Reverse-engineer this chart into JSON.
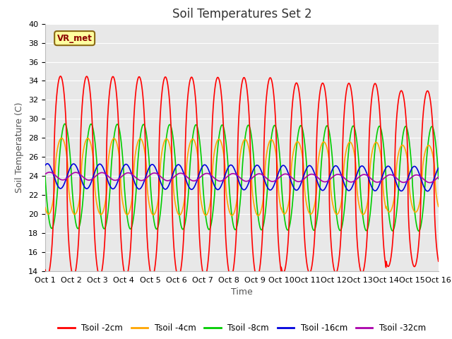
{
  "title": "Soil Temperatures Set 2",
  "xlabel": "Time",
  "ylabel": "Soil Temperature (C)",
  "ylim": [
    14,
    40
  ],
  "yticks": [
    14,
    16,
    18,
    20,
    22,
    24,
    26,
    28,
    30,
    32,
    34,
    36,
    38,
    40
  ],
  "x_tick_labels": [
    "Oct 1",
    "Oct 2",
    "Oct 3",
    "Oct 4",
    "Oct 5",
    "Oct 6",
    "Oct 7",
    "Oct 8",
    "Oct 9",
    "Oct 10",
    "Oct 11",
    "Oct 12",
    "Oct 13",
    "Oct 14",
    "Oct 15",
    "Oct 16"
  ],
  "annotation_text": "VR_met",
  "series": [
    {
      "label": "Tsoil -2cm",
      "color": "#FF0000",
      "lw": 1.2
    },
    {
      "label": "Tsoil -4cm",
      "color": "#FFA500",
      "lw": 1.2
    },
    {
      "label": "Tsoil -8cm",
      "color": "#00CC00",
      "lw": 1.2
    },
    {
      "label": "Tsoil -16cm",
      "color": "#0000DD",
      "lw": 1.2
    },
    {
      "label": "Tsoil -32cm",
      "color": "#AA00AA",
      "lw": 1.2
    }
  ],
  "background_color": "#E8E8E8",
  "grid_color": "#FFFFFF",
  "title_fontsize": 12,
  "axis_label_fontsize": 9,
  "tick_fontsize": 8
}
